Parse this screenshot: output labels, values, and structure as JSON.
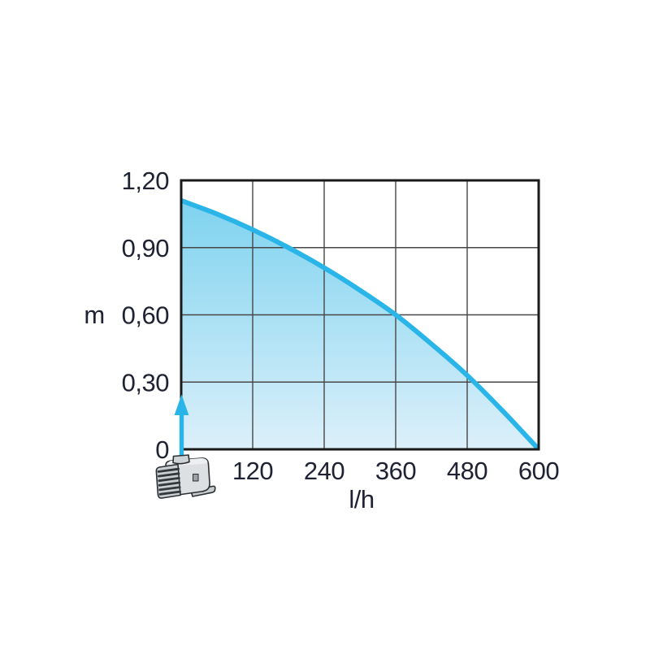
{
  "page": {
    "background": "#ffffff"
  },
  "colors": {
    "accent_cyan": "#29b5e8",
    "fill_top": "#7cd2ef",
    "fill_bottom": "#dcf0fa",
    "grid": "#474747",
    "border": "#1a1a1a",
    "text": "#1f2233"
  },
  "icons": {
    "pump": "pump-icon",
    "arrow": "flow-arrow-icon"
  },
  "chart_data": {
    "type": "area",
    "title": "",
    "xlabel": "l/h",
    "ylabel": "m",
    "x": [
      0,
      60,
      120,
      180,
      240,
      300,
      360,
      420,
      480,
      540,
      600
    ],
    "y": [
      1.11,
      1.05,
      0.98,
      0.9,
      0.81,
      0.71,
      0.6,
      0.47,
      0.33,
      0.17,
      0
    ],
    "xlim": [
      0,
      600
    ],
    "ylim": [
      0,
      1.2
    ],
    "xticks": [
      120,
      240,
      360,
      480,
      600
    ],
    "xtick_labels": [
      "120",
      "240",
      "360",
      "480",
      "600"
    ],
    "yticks": [
      1.2,
      0.9,
      0.6,
      0.3,
      0
    ],
    "ytick_labels": [
      "1,20",
      "0,90",
      "0,60",
      "0,30",
      "0"
    ],
    "grid": true,
    "legend": false
  }
}
